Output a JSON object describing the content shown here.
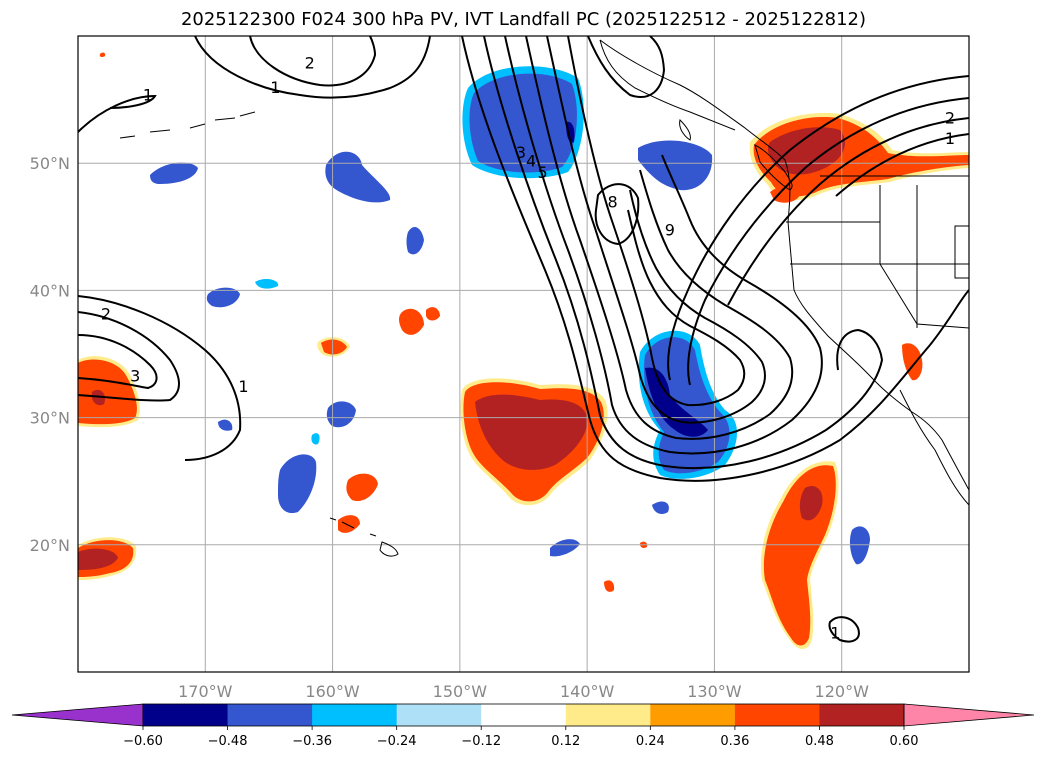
{
  "title": "2025122300 F024 300 hPa PV, IVT Landfall PC (2025122512 - 2025122812)",
  "map": {
    "projection": "equirectangular",
    "lon_range": [
      -180,
      -110
    ],
    "lat_range": [
      10,
      60
    ],
    "gridlines": true,
    "coastlines": true,
    "state_borders": true
  },
  "axes": {
    "lat_ticks": [
      {
        "value": 50,
        "label": "50°N"
      },
      {
        "value": 40,
        "label": "40°N"
      },
      {
        "value": 30,
        "label": "30°N"
      },
      {
        "value": 20,
        "label": "20°N"
      }
    ],
    "lon_ticks": [
      {
        "value": -170,
        "label": "170°W"
      },
      {
        "value": -160,
        "label": "160°W"
      },
      {
        "value": -150,
        "label": "150°W"
      },
      {
        "value": -140,
        "label": "140°W"
      },
      {
        "value": -130,
        "label": "130°W"
      },
      {
        "value": -120,
        "label": "120°W"
      }
    ]
  },
  "colorbar": {
    "extend": "both",
    "colors": {
      "under": "#9932cc",
      "bins": [
        "#00008b",
        "#3457d0",
        "#00bfff",
        "#aee0f7",
        "#ffffff",
        "#ffeb8a",
        "#ff9d00",
        "#ff4500",
        "#b22222"
      ],
      "over": "#ff85a8"
    },
    "tick_labels": [
      "−0.60",
      "−0.48",
      "−0.36",
      "−0.24",
      "−0.12",
      "0.12",
      "0.24",
      "0.36",
      "0.48",
      "0.60"
    ]
  },
  "contour_labels": [
    {
      "text": "1",
      "lon": -174.5,
      "lat": 55.4
    },
    {
      "text": "1",
      "lon": -164.5,
      "lat": 56.0
    },
    {
      "text": "2",
      "lon": -161.8,
      "lat": 57.9
    },
    {
      "text": "2",
      "lon": -177.8,
      "lat": 38.2
    },
    {
      "text": "3",
      "lon": -175.5,
      "lat": 33.3
    },
    {
      "text": "1",
      "lon": -167.0,
      "lat": 32.5
    },
    {
      "text": "3",
      "lon": -145.2,
      "lat": 50.9
    },
    {
      "text": "4",
      "lon": -144.4,
      "lat": 50.2
    },
    {
      "text": "5",
      "lon": -143.5,
      "lat": 49.3
    },
    {
      "text": "8",
      "lon": -138.0,
      "lat": 47.0
    },
    {
      "text": "9",
      "lon": -133.5,
      "lat": 44.8
    },
    {
      "text": "2",
      "lon": -111.5,
      "lat": 53.6
    },
    {
      "text": "1",
      "lon": -111.5,
      "lat": 52.0
    },
    {
      "text": "1",
      "lon": -120.5,
      "lat": 13.1
    }
  ]
}
